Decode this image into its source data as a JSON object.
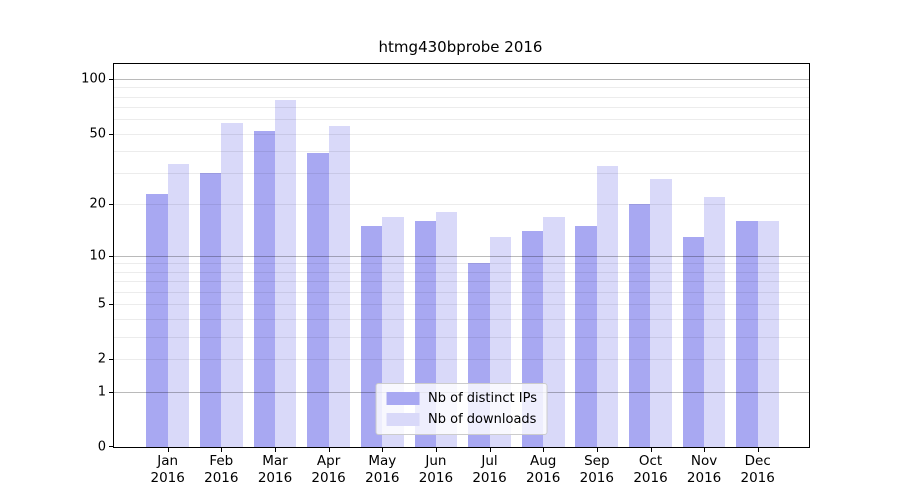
{
  "title": "htmg430bprobe 2016",
  "chart_data": {
    "type": "bar",
    "title": "htmg430bprobe 2016",
    "categories": [
      "Jan 2016",
      "Feb 2016",
      "Mar 2016",
      "Apr 2016",
      "May 2016",
      "Jun 2016",
      "Jul 2016",
      "Aug 2016",
      "Sep 2016",
      "Oct 2016",
      "Nov 2016",
      "Dec 2016"
    ],
    "series": [
      {
        "name": "Nb of distinct IPs",
        "color": "#a8a8f2",
        "values": [
          23,
          30,
          52,
          39,
          15,
          16,
          9,
          14,
          15,
          20,
          13,
          16
        ]
      },
      {
        "name": "Nb of downloads",
        "color": "#d9d9f9",
        "values": [
          34,
          57,
          77,
          55,
          17,
          18,
          13,
          17,
          33,
          28,
          22,
          16
        ]
      }
    ],
    "xlabel": "",
    "ylabel": "",
    "yscale": "log1p",
    "ylim": [
      0,
      121
    ],
    "yticks": [
      100,
      50,
      20,
      10,
      5,
      2,
      1,
      0
    ],
    "grid": {
      "major_values": [
        1,
        10,
        100
      ],
      "minor_values": [
        2,
        3,
        4,
        5,
        6,
        7,
        8,
        9,
        20,
        30,
        40,
        50,
        60,
        70,
        80,
        90
      ]
    },
    "legend_position": "lower center",
    "colors": {
      "spine": "#000000",
      "major_grid": "#bababa",
      "minor_grid": "#ececec",
      "background": "#ffffff"
    }
  }
}
